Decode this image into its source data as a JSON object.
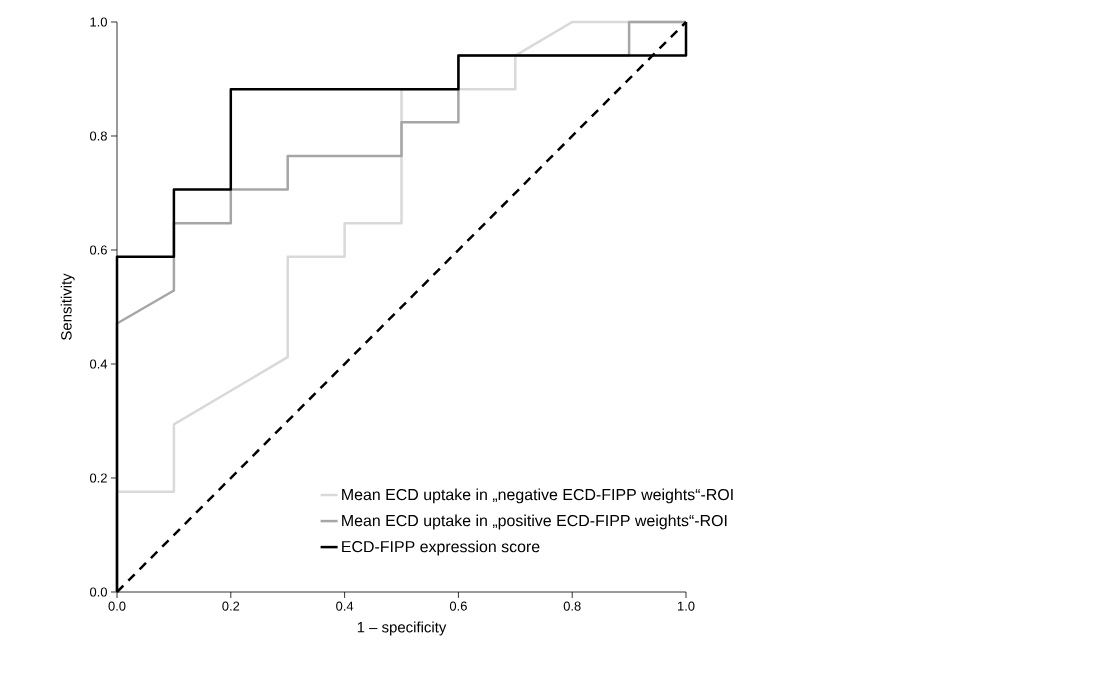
{
  "chart_data": {
    "type": "line",
    "xlabel": "1 – specificity",
    "ylabel": "Sensitivity",
    "xlim": [
      0,
      1
    ],
    "ylim": [
      0,
      1
    ],
    "xticks": [
      {
        "value": 0,
        "label": "0.0"
      },
      {
        "value": 0.2,
        "label": "0.2"
      },
      {
        "value": 0.4,
        "label": "0.4"
      },
      {
        "value": 0.6,
        "label": "0.6"
      },
      {
        "value": 0.8,
        "label": "0.8"
      },
      {
        "value": 1,
        "label": "1.0"
      }
    ],
    "yticks": [
      {
        "value": 0,
        "label": "0.0"
      },
      {
        "value": 0.2,
        "label": "0.2"
      },
      {
        "value": 0.4,
        "label": "0.4"
      },
      {
        "value": 0.6,
        "label": "0.6"
      },
      {
        "value": 0.8,
        "label": "0.8"
      },
      {
        "value": 1,
        "label": "1.0"
      }
    ],
    "grid": false,
    "legend": "bottom right",
    "marker": "none",
    "series": [
      {
        "name": "Mean ECD uptake in „negative ECD-FIPP weights“-ROI",
        "color": "#d9d9d9",
        "x": [
          0,
          0,
          0.1,
          0.1,
          0.3,
          0.3,
          0.4,
          0.4,
          0.5,
          0.5,
          0.7,
          0.7,
          0.8,
          1
        ],
        "values": [
          0,
          0.176,
          0.176,
          0.294,
          0.412,
          0.588,
          0.588,
          0.647,
          0.647,
          0.882,
          0.882,
          0.941,
          1,
          1
        ]
      },
      {
        "name": "Mean ECD uptake in „positive ECD-FIPP weights“-ROI",
        "color": "#a6a6a6",
        "x": [
          0,
          0,
          0.1,
          0.1,
          0.2,
          0.2,
          0.3,
          0.3,
          0.5,
          0.5,
          0.6,
          0.6,
          0.9,
          0.9,
          1
        ],
        "values": [
          0,
          0.471,
          0.529,
          0.647,
          0.647,
          0.706,
          0.706,
          0.765,
          0.765,
          0.824,
          0.824,
          0.941,
          0.941,
          1,
          1
        ]
      },
      {
        "name": "ECD-FIPP expression score",
        "color": "#000000",
        "x": [
          0,
          0,
          0.1,
          0.1,
          0.2,
          0.2,
          0.6,
          0.6,
          1,
          1
        ],
        "values": [
          0,
          0.588,
          0.588,
          0.706,
          0.706,
          0.882,
          0.882,
          0.941,
          0.941,
          1
        ]
      },
      {
        "color": "#000000",
        "line_style": "dashed",
        "x": [
          0,
          1
        ],
        "values": [
          0,
          1
        ]
      }
    ]
  }
}
